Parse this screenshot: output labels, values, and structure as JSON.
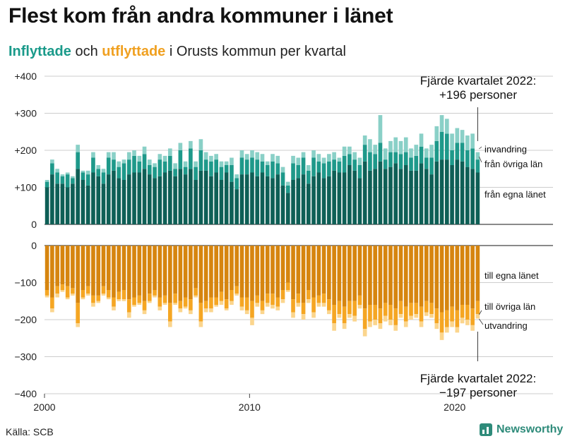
{
  "title": "Flest kom från andra kommuner i länet",
  "subtitle": {
    "in_word": "Inflyttade",
    "and_word": "och",
    "out_word": "utflyttade",
    "rest": "i Orusts kommun per kvartal"
  },
  "source": "Källa: SCB",
  "brand": "Newsworthy",
  "colors": {
    "in_own": "#0e5f56",
    "in_other": "#1e998a",
    "in_abroad": "#8ad0c7",
    "out_own": "#d6850f",
    "out_other": "#f5a623",
    "out_abroad": "#fbd58d"
  },
  "chart_data": {
    "type": "bar",
    "stacked": true,
    "x_start_year": 2000,
    "periods_per_year": 4,
    "x_ticks": [
      "2000",
      "2010",
      "2020"
    ],
    "top_axis": {
      "ylim": [
        0,
        400
      ],
      "ticks": [
        "0",
        "+100",
        "+200",
        "+300",
        "+400"
      ]
    },
    "bottom_axis": {
      "ylim": [
        -400,
        0
      ],
      "ticks": [
        "0",
        "−100",
        "−200",
        "−300",
        "−400"
      ]
    },
    "inflow_series": [
      {
        "name": "från egna länet",
        "values": [
          100,
          135,
          110,
          110,
          100,
          110,
          150,
          120,
          105,
          140,
          130,
          110,
          135,
          145,
          125,
          120,
          135,
          140,
          140,
          150,
          135,
          125,
          130,
          140,
          145,
          130,
          150,
          135,
          150,
          120,
          145,
          145,
          130,
          140,
          120,
          140,
          115,
          95,
          135,
          135,
          140,
          130,
          140,
          130,
          125,
          135,
          105,
          85,
          120,
          125,
          135,
          110,
          130,
          140,
          125,
          130,
          145,
          140,
          140,
          160,
          145,
          125,
          170,
          145,
          150,
          170,
          150,
          155,
          165,
          150,
          160,
          145,
          145,
          165,
          150,
          135,
          170,
          175,
          175,
          160,
          175,
          170,
          155,
          150,
          140
        ]
      },
      {
        "name": "från övriga län",
        "values": [
          15,
          30,
          30,
          20,
          35,
          15,
          45,
          20,
          30,
          40,
          20,
          30,
          45,
          30,
          30,
          45,
          40,
          45,
          30,
          40,
          25,
          30,
          45,
          30,
          40,
          20,
          50,
          20,
          55,
          35,
          55,
          30,
          40,
          35,
          35,
          20,
          45,
          30,
          45,
          40,
          40,
          45,
          30,
          30,
          45,
          30,
          35,
          20,
          45,
          35,
          45,
          35,
          50,
          30,
          40,
          40,
          30,
          30,
          45,
          30,
          30,
          35,
          45,
          50,
          40,
          50,
          25,
          40,
          30,
          40,
          35,
          35,
          40,
          45,
          30,
          45,
          55,
          75,
          70,
          40,
          45,
          50,
          45,
          55,
          35
        ]
      },
      {
        "name": "invandring",
        "values": [
          5,
          10,
          10,
          5,
          5,
          5,
          20,
          5,
          10,
          15,
          10,
          10,
          15,
          20,
          15,
          10,
          20,
          15,
          15,
          20,
          15,
          10,
          15,
          15,
          20,
          15,
          20,
          15,
          20,
          15,
          30,
          20,
          15,
          15,
          15,
          10,
          20,
          10,
          20,
          15,
          20,
          20,
          20,
          10,
          20,
          20,
          15,
          10,
          20,
          20,
          15,
          15,
          20,
          20,
          15,
          20,
          20,
          10,
          25,
          20,
          20,
          20,
          25,
          35,
          25,
          75,
          30,
          30,
          40,
          35,
          40,
          25,
          30,
          35,
          25,
          35,
          40,
          45,
          40,
          45,
          40,
          35,
          40,
          40,
          20
        ]
      }
    ],
    "outflow_series": [
      {
        "name": "till egna länet",
        "values": [
          -120,
          -140,
          -110,
          -105,
          -110,
          -115,
          -155,
          -120,
          -110,
          -135,
          -135,
          -110,
          -120,
          -140,
          -125,
          -120,
          -145,
          -140,
          -135,
          -150,
          -130,
          -120,
          -140,
          -135,
          -155,
          -130,
          -150,
          -140,
          -145,
          -115,
          -155,
          -150,
          -140,
          -140,
          -125,
          -145,
          -120,
          -110,
          -140,
          -140,
          -150,
          -135,
          -150,
          -130,
          -130,
          -140,
          -120,
          -100,
          -145,
          -130,
          -155,
          -120,
          -140,
          -135,
          -130,
          -145,
          -160,
          -150,
          -165,
          -150,
          -150,
          -135,
          -170,
          -160,
          -160,
          -170,
          -155,
          -160,
          -170,
          -150,
          -165,
          -155,
          -155,
          -165,
          -150,
          -155,
          -170,
          -180,
          -175,
          -165,
          -175,
          -160,
          -160,
          -170,
          -150
        ]
      },
      {
        "name": "till övriga län",
        "values": [
          -15,
          -30,
          -20,
          -15,
          -30,
          -15,
          -55,
          -20,
          -20,
          -20,
          -15,
          -20,
          -20,
          -25,
          -20,
          -25,
          -35,
          -20,
          -20,
          -25,
          -20,
          -15,
          -25,
          -20,
          -50,
          -25,
          -20,
          -25,
          -30,
          -20,
          -50,
          -20,
          -30,
          -20,
          -25,
          -25,
          -30,
          -20,
          -25,
          -35,
          -45,
          -20,
          -25,
          -25,
          -30,
          -25,
          -25,
          -20,
          -35,
          -25,
          -30,
          -25,
          -40,
          -20,
          -25,
          -30,
          -50,
          -35,
          -45,
          -35,
          -40,
          -25,
          -55,
          -45,
          -40,
          -40,
          -35,
          -40,
          -45,
          -35,
          -40,
          -35,
          -30,
          -40,
          -30,
          -30,
          -40,
          -55,
          -45,
          -40,
          -45,
          -35,
          -40,
          -45,
          -35
        ]
      },
      {
        "name": "utvandring",
        "values": [
          -5,
          -10,
          -10,
          -5,
          -5,
          -5,
          -10,
          -5,
          -5,
          -10,
          -5,
          -5,
          -5,
          -10,
          -5,
          -5,
          -15,
          -5,
          -5,
          -10,
          -5,
          -5,
          -10,
          -5,
          -15,
          -5,
          -10,
          -5,
          -10,
          -5,
          -15,
          -10,
          -10,
          -5,
          -10,
          -5,
          -10,
          -5,
          -10,
          -10,
          -20,
          -10,
          -10,
          -10,
          -10,
          -10,
          -10,
          -5,
          -15,
          -10,
          -15,
          -10,
          -15,
          -10,
          -10,
          -10,
          -20,
          -10,
          -15,
          -10,
          -15,
          -10,
          -20,
          -15,
          -15,
          -15,
          -15,
          -15,
          -15,
          -10,
          -15,
          -10,
          -10,
          -15,
          -10,
          -10,
          -15,
          -20,
          -15,
          -15,
          -15,
          -15,
          -15,
          -15,
          -12
        ]
      }
    ],
    "annotations": {
      "top": [
        "Fjärde kvartalet 2022:",
        "+196 personer"
      ],
      "bottom": [
        "Fjärde kvartalet 2022:",
        "−197 personer"
      ]
    }
  }
}
